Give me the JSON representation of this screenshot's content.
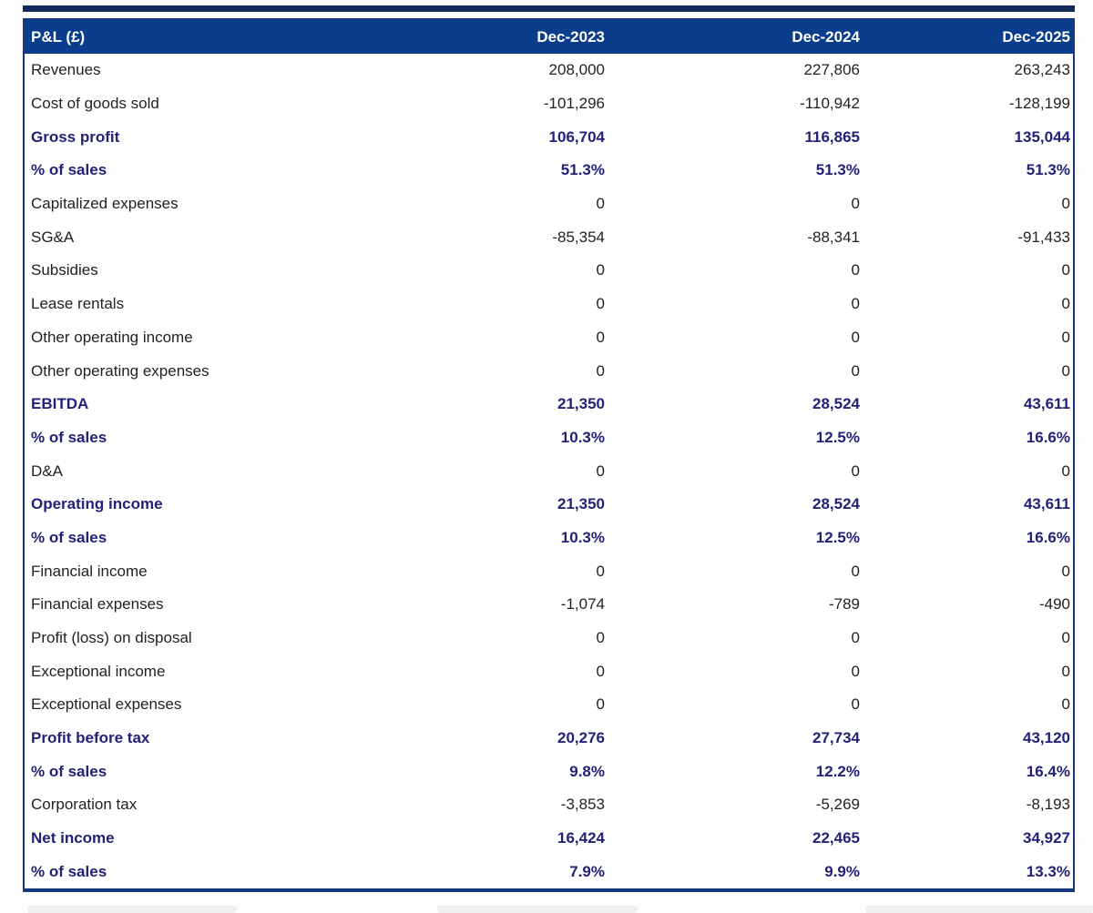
{
  "colors": {
    "top_bar": "#13295c",
    "header_bg": "#0a3d8c",
    "header_text": "#ffffff",
    "table_border": "#16387f",
    "body_text": "#222222",
    "emphasis_text": "#232278"
  },
  "table": {
    "corner_label": "P&L (£)",
    "columns": [
      "Dec-2023",
      "Dec-2024",
      "Dec-2025"
    ],
    "rows": [
      {
        "label": "Revenues",
        "values": [
          "208,000",
          "227,806",
          "263,243"
        ],
        "bold": false
      },
      {
        "label": "Cost of goods sold",
        "values": [
          "-101,296",
          "-110,942",
          "-128,199"
        ],
        "bold": false
      },
      {
        "label": "Gross profit",
        "values": [
          "106,704",
          "116,865",
          "135,044"
        ],
        "bold": true
      },
      {
        "label": "% of sales",
        "values": [
          "51.3%",
          "51.3%",
          "51.3%"
        ],
        "bold": true
      },
      {
        "label": "Capitalized expenses",
        "values": [
          "0",
          "0",
          "0"
        ],
        "bold": false
      },
      {
        "label": "SG&A",
        "values": [
          "-85,354",
          "-88,341",
          "-91,433"
        ],
        "bold": false
      },
      {
        "label": "Subsidies",
        "values": [
          "0",
          "0",
          "0"
        ],
        "bold": false
      },
      {
        "label": "Lease rentals",
        "values": [
          "0",
          "0",
          "0"
        ],
        "bold": false
      },
      {
        "label": "Other operating income",
        "values": [
          "0",
          "0",
          "0"
        ],
        "bold": false
      },
      {
        "label": "Other operating expenses",
        "values": [
          "0",
          "0",
          "0"
        ],
        "bold": false
      },
      {
        "label": "EBITDA",
        "values": [
          "21,350",
          "28,524",
          "43,611"
        ],
        "bold": true
      },
      {
        "label": "% of sales",
        "values": [
          "10.3%",
          "12.5%",
          "16.6%"
        ],
        "bold": true
      },
      {
        "label": "D&A",
        "values": [
          "0",
          "0",
          "0"
        ],
        "bold": false
      },
      {
        "label": "Operating income",
        "values": [
          "21,350",
          "28,524",
          "43,611"
        ],
        "bold": true
      },
      {
        "label": "% of sales",
        "values": [
          "10.3%",
          "12.5%",
          "16.6%"
        ],
        "bold": true
      },
      {
        "label": "Financial income",
        "values": [
          "0",
          "0",
          "0"
        ],
        "bold": false
      },
      {
        "label": "Financial expenses",
        "values": [
          "-1,074",
          "-789",
          "-490"
        ],
        "bold": false
      },
      {
        "label": "Profit (loss) on disposal",
        "values": [
          "0",
          "0",
          "0"
        ],
        "bold": false
      },
      {
        "label": "Exceptional income",
        "values": [
          "0",
          "0",
          "0"
        ],
        "bold": false
      },
      {
        "label": "Exceptional expenses",
        "values": [
          "0",
          "0",
          "0"
        ],
        "bold": false
      },
      {
        "label": "Profit before tax",
        "values": [
          "20,276",
          "27,734",
          "43,120"
        ],
        "bold": true
      },
      {
        "label": "% of sales",
        "values": [
          "9.8%",
          "12.2%",
          "16.4%"
        ],
        "bold": true
      },
      {
        "label": "Corporation tax",
        "values": [
          "-3,853",
          "-5,269",
          "-8,193"
        ],
        "bold": false
      },
      {
        "label": "Net income",
        "values": [
          "16,424",
          "22,465",
          "34,927"
        ],
        "bold": true
      },
      {
        "label": "% of sales",
        "values": [
          "7.9%",
          "9.9%",
          "13.3%"
        ],
        "bold": true
      }
    ]
  }
}
